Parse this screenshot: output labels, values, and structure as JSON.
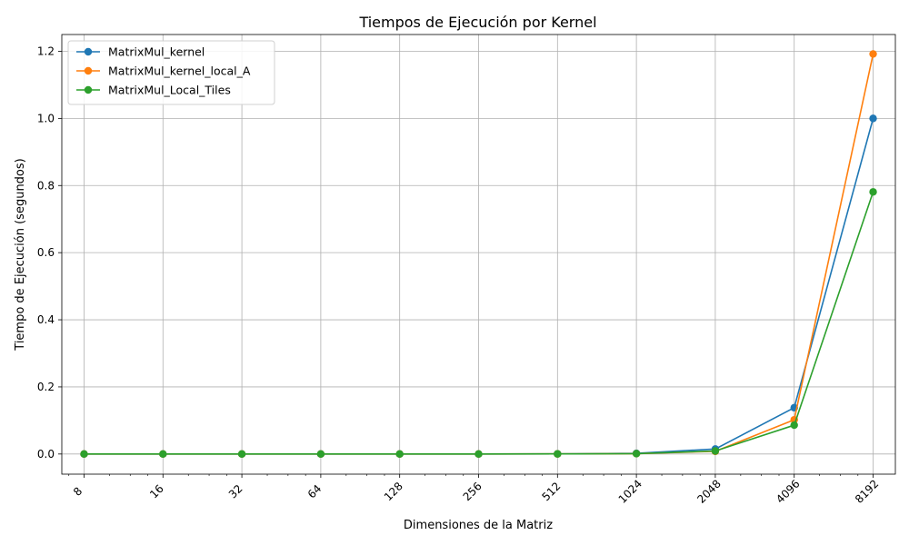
{
  "chart_data": {
    "type": "line",
    "title": "Tiempos de Ejecución por Kernel",
    "xlabel": "Dimensiones de la Matriz",
    "ylabel": "Tiempo de Ejecución (segundos)",
    "x_scale": "log2",
    "x": [
      8,
      16,
      32,
      64,
      128,
      256,
      512,
      1024,
      2048,
      4096,
      8192
    ],
    "x_tick_labels": [
      "8",
      "16",
      "32",
      "64",
      "128",
      "256",
      "512",
      "1024",
      "2048",
      "4096",
      "8192"
    ],
    "y_tick_labels": [
      "0.0",
      "0.2",
      "0.4",
      "0.6",
      "0.8",
      "1.0",
      "1.2"
    ],
    "y_ticks": [
      0,
      0.2,
      0.4,
      0.6,
      0.8,
      1.0,
      1.2
    ],
    "ylim": [
      -0.06,
      1.25
    ],
    "grid": true,
    "legend_position": "top-left",
    "series": [
      {
        "name": "MatrixMul_kernel",
        "color": "#1f77b4",
        "values": [
          0.0,
          0.0,
          0.0,
          0.0,
          0.0,
          0.0,
          0.0005,
          0.002,
          0.015,
          0.138,
          1.0
        ]
      },
      {
        "name": "MatrixMul_kernel_local_A",
        "color": "#ff7f0e",
        "values": [
          0.0,
          0.0,
          0.0,
          0.0,
          0.0,
          0.0,
          0.0003,
          0.001,
          0.008,
          0.102,
          1.192
        ]
      },
      {
        "name": "MatrixMul_Local_Tiles",
        "color": "#2ca02c",
        "values": [
          0.0,
          0.0,
          0.0,
          0.0,
          0.0,
          0.0,
          0.0003,
          0.001,
          0.009,
          0.086,
          0.781
        ]
      }
    ]
  }
}
